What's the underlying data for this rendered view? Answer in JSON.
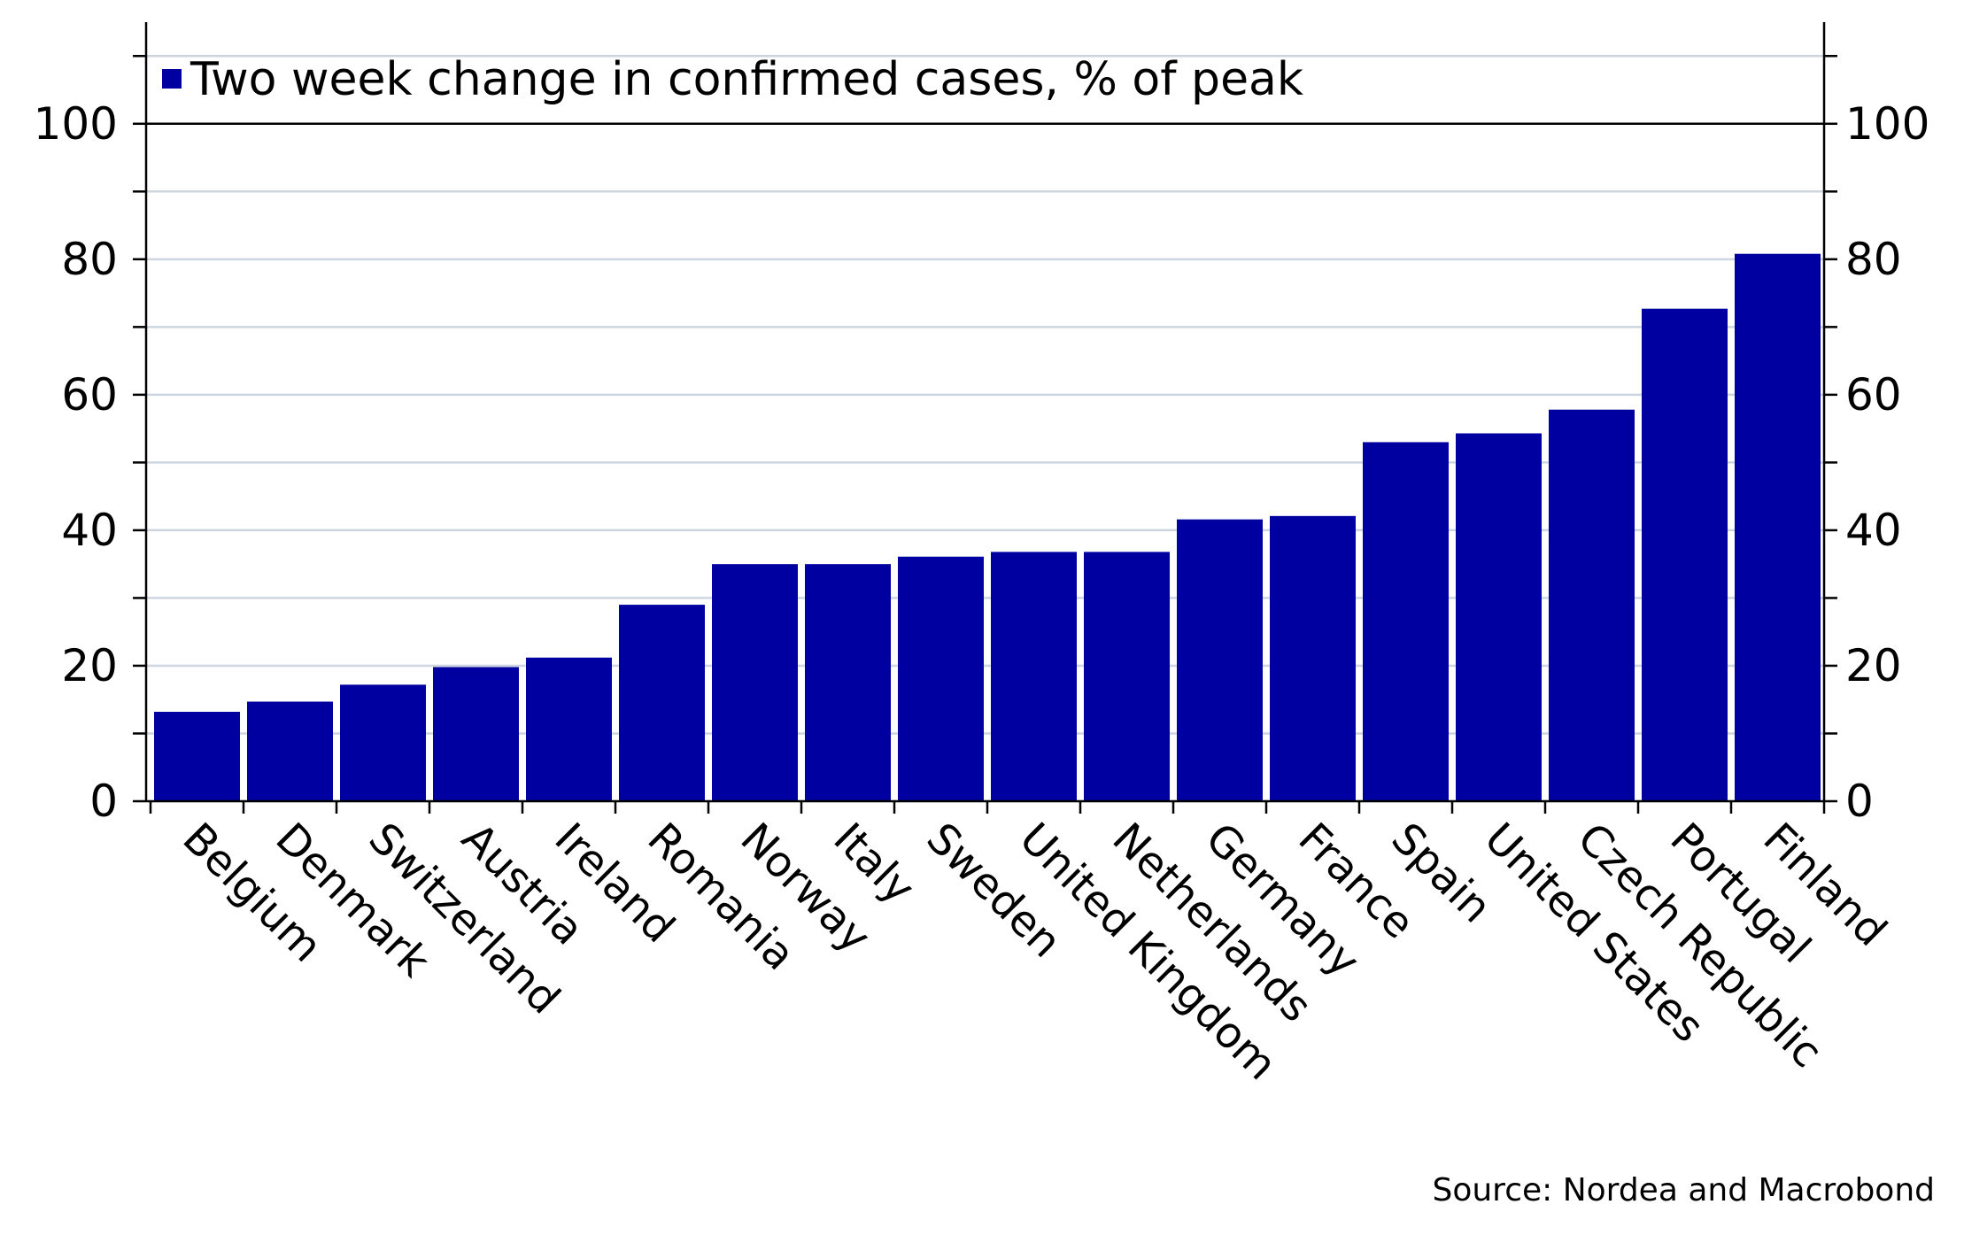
{
  "chart_data": {
    "type": "bar",
    "legend": {
      "label": "Two week change in confirmed cases, % of peak",
      "placement": "top-left"
    },
    "categories": [
      "Belgium",
      "Denmark",
      "Switzerland",
      "Austria",
      "Ireland",
      "Romania",
      "Norway",
      "Italy",
      "Sweden",
      "United Kingdom",
      "Netherlands",
      "Germany",
      "France",
      "Spain",
      "United States",
      "Czech Republic",
      "Portugal",
      "Finland"
    ],
    "series": [
      {
        "name": "Two week change in confirmed cases, % of peak",
        "color": "#0000a0",
        "values": [
          13.2,
          14.7,
          17.2,
          19.8,
          21.2,
          29.0,
          35.0,
          35.0,
          36.1,
          36.8,
          36.8,
          41.6,
          42.1,
          53.0,
          54.3,
          57.8,
          72.7,
          80.8
        ]
      }
    ],
    "ylim": [
      0,
      115
    ],
    "yticks": [
      0,
      20,
      40,
      60,
      80,
      100
    ],
    "yticks_minor": [
      10,
      30,
      50,
      70,
      90,
      110
    ],
    "grid": true,
    "dual_y_axis": true,
    "xlabel": "",
    "ylabel": "",
    "source": "Source: Nordea and Macrobond"
  }
}
